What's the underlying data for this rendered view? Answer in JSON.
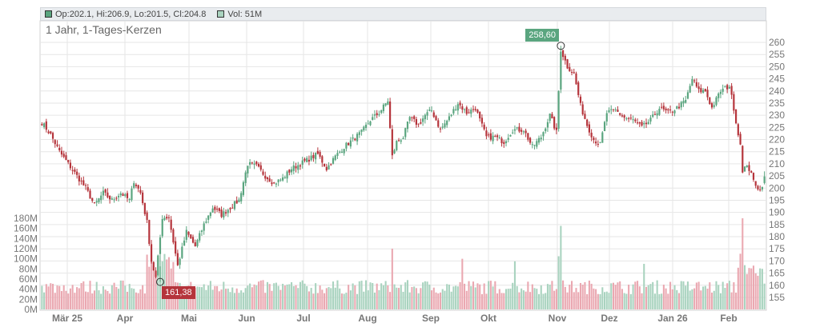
{
  "legend": {
    "ohlc_label": "Op:202.1, Hi:206.9, Lo:201.5, Cl:204.8",
    "vol_label": "Vol: 51M"
  },
  "colors": {
    "up": "#5aa57f",
    "down": "#b5343b",
    "vol_up": "#a9d3bf",
    "vol_down": "#eaa8b1",
    "grid": "#e6e6e6",
    "axis_text": "#777777"
  },
  "chart_data": {
    "type": "candlestick",
    "title": "1 Jahr, 1-Tages-Kerzen",
    "x_labels": [
      "Mär 25",
      "Apr",
      "Mai",
      "Jun",
      "Jul",
      "Aug",
      "Sep",
      "Okt",
      "Nov",
      "Dez",
      "Jan 26",
      "Feb"
    ],
    "price_ticks": [
      155,
      160,
      165,
      170,
      175,
      180,
      185,
      190,
      195,
      200,
      205,
      210,
      215,
      220,
      225,
      230,
      235,
      240,
      245,
      250,
      255,
      260
    ],
    "price_range": [
      152,
      263
    ],
    "volume_ticks": [
      "0M",
      "20M",
      "40M",
      "60M",
      "80M",
      "100M",
      "120M",
      "140M",
      "160M",
      "180M"
    ],
    "volume_range": [
      0,
      180
    ],
    "grid": true,
    "annotations": [
      {
        "label": "258,60",
        "value": 258.6,
        "kind": "high"
      },
      {
        "label": "161,38",
        "value": 161.38,
        "kind": "low"
      }
    ],
    "close_path": [
      [
        0,
        227
      ],
      [
        4,
        222
      ],
      [
        8,
        215
      ],
      [
        12,
        210
      ],
      [
        16,
        205
      ],
      [
        20,
        200
      ],
      [
        24,
        193
      ],
      [
        28,
        198
      ],
      [
        32,
        195
      ],
      [
        36,
        198
      ],
      [
        40,
        195
      ],
      [
        42,
        203
      ],
      [
        45,
        198
      ],
      [
        48,
        186
      ],
      [
        50,
        170
      ],
      [
        52,
        163
      ],
      [
        55,
        188
      ],
      [
        58,
        188
      ],
      [
        62,
        168
      ],
      [
        66,
        182
      ],
      [
        70,
        176
      ],
      [
        74,
        185
      ],
      [
        78,
        192
      ],
      [
        82,
        189
      ],
      [
        86,
        192
      ],
      [
        90,
        195
      ],
      [
        94,
        210
      ],
      [
        98,
        209
      ],
      [
        102,
        205
      ],
      [
        106,
        202
      ],
      [
        110,
        204
      ],
      [
        114,
        208
      ],
      [
        118,
        210
      ],
      [
        122,
        212
      ],
      [
        126,
        214
      ],
      [
        130,
        208
      ],
      [
        134,
        213
      ],
      [
        138,
        217
      ],
      [
        142,
        220
      ],
      [
        146,
        223
      ],
      [
        150,
        228
      ],
      [
        154,
        231
      ],
      [
        158,
        236
      ],
      [
        160,
        213
      ],
      [
        162,
        219
      ],
      [
        165,
        221
      ],
      [
        168,
        229
      ],
      [
        172,
        226
      ],
      [
        175,
        230
      ],
      [
        178,
        232
      ],
      [
        182,
        224
      ],
      [
        186,
        229
      ],
      [
        190,
        235
      ],
      [
        194,
        231
      ],
      [
        198,
        233
      ],
      [
        200,
        228
      ],
      [
        203,
        221
      ],
      [
        207,
        221
      ],
      [
        211,
        219
      ],
      [
        215,
        224
      ],
      [
        220,
        224
      ],
      [
        224,
        217
      ],
      [
        228,
        221
      ],
      [
        232,
        230
      ],
      [
        235,
        223
      ],
      [
        237,
        257
      ],
      [
        240,
        250
      ],
      [
        243,
        247
      ],
      [
        246,
        234
      ],
      [
        249,
        226
      ],
      [
        252,
        220
      ],
      [
        255,
        218
      ],
      [
        258,
        231
      ],
      [
        262,
        232
      ],
      [
        266,
        229
      ],
      [
        270,
        228
      ],
      [
        274,
        225
      ],
      [
        278,
        228
      ],
      [
        282,
        233
      ],
      [
        286,
        231
      ],
      [
        290,
        233
      ],
      [
        294,
        236
      ],
      [
        297,
        245
      ],
      [
        300,
        240
      ],
      [
        303,
        240
      ],
      [
        306,
        233
      ],
      [
        310,
        240
      ],
      [
        314,
        242
      ],
      [
        316,
        233
      ],
      [
        318,
        222
      ],
      [
        319,
        219
      ],
      [
        320,
        206
      ],
      [
        322,
        210
      ],
      [
        325,
        203
      ],
      [
        328,
        199
      ],
      [
        330,
        204
      ]
    ],
    "last_candle": {
      "open": 202.1,
      "high": 206.9,
      "low": 201.5,
      "close": 204.8,
      "volume_m": 51
    }
  }
}
